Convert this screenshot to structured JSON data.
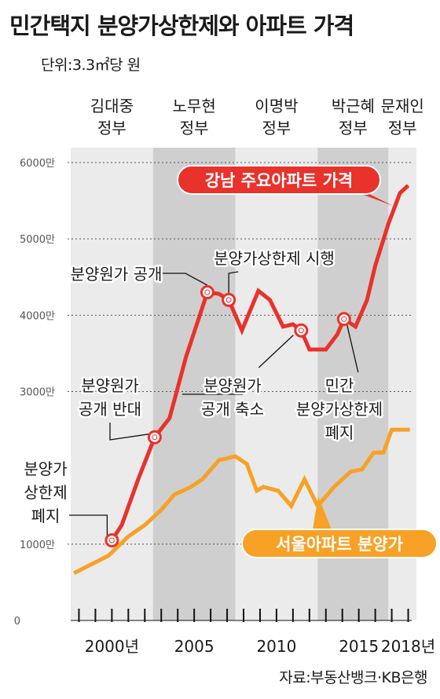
{
  "title": "민간택지 분양가상한제와 아파트 가격",
  "unit": "단위:3.3㎡당 원",
  "source": "자료:부동산뱅크·KB은행",
  "colors": {
    "red": "#e8322b",
    "orange": "#f7a127",
    "band_light": "#ebebeb",
    "band_dark": "#cfcfcf"
  },
  "chart_data": {
    "type": "line",
    "x_range": [
      1998,
      2019
    ],
    "ylim": [
      0,
      6300
    ],
    "grid": "dotted horizontal",
    "y_ticks": [
      {
        "value": 0,
        "label": "0"
      },
      {
        "value": 1000,
        "label": "1000만"
      },
      {
        "value": 3000,
        "label": "3000만"
      },
      {
        "value": 4000,
        "label": "4000만"
      },
      {
        "value": 5000,
        "label": "5000만"
      },
      {
        "value": 6000,
        "label": "6000만"
      }
    ],
    "x_tick_labels": [
      {
        "x": 2000,
        "label": "2000년"
      },
      {
        "x": 2005,
        "label": "2005"
      },
      {
        "x": 2010,
        "label": "2010"
      },
      {
        "x": 2015,
        "label": "2015"
      },
      {
        "x": 2018,
        "label": "2018년"
      }
    ],
    "governments": [
      {
        "line1": "김대중",
        "line2": "정부",
        "start": 1998,
        "end": 2003,
        "shade": "light"
      },
      {
        "line1": "노무현",
        "line2": "정부",
        "start": 2003,
        "end": 2008,
        "shade": "dark"
      },
      {
        "line1": "이명박",
        "line2": "정부",
        "start": 2008,
        "end": 2013,
        "shade": "light"
      },
      {
        "line1": "박근혜",
        "line2": "정부",
        "start": 2013,
        "end": 2017.3,
        "shade": "dark"
      },
      {
        "line1": "문재인",
        "line2": "정부",
        "start": 2017.3,
        "end": 2019,
        "shade": "light"
      }
    ],
    "series": [
      {
        "name": "강남 주요아파트 가격",
        "color": "#e8322b",
        "points": [
          [
            2000.5,
            1050
          ],
          [
            2001.1,
            1250
          ],
          [
            2002.1,
            1850
          ],
          [
            2003.1,
            2400
          ],
          [
            2004.0,
            2650
          ],
          [
            2005.0,
            3450
          ],
          [
            2006.3,
            4300
          ],
          [
            2007.0,
            4280
          ],
          [
            2007.6,
            4200
          ],
          [
            2008.4,
            3800
          ],
          [
            2009.4,
            4320
          ],
          [
            2010.1,
            4200
          ],
          [
            2010.9,
            3850
          ],
          [
            2011.5,
            3880
          ],
          [
            2012.0,
            3800
          ],
          [
            2012.5,
            3550
          ],
          [
            2013.5,
            3550
          ],
          [
            2014.2,
            3750
          ],
          [
            2014.6,
            3950
          ],
          [
            2015.3,
            3850
          ],
          [
            2016.0,
            4200
          ],
          [
            2016.5,
            4650
          ],
          [
            2017.3,
            5200
          ],
          [
            2018.0,
            5600
          ],
          [
            2018.5,
            5700
          ]
        ]
      },
      {
        "name": "서울아파트 분양가",
        "color": "#f7a127",
        "points": [
          [
            1998.2,
            620
          ],
          [
            2000.3,
            850
          ],
          [
            2001.5,
            1100
          ],
          [
            2002.5,
            1250
          ],
          [
            2003.5,
            1450
          ],
          [
            2004.3,
            1650
          ],
          [
            2005.3,
            1750
          ],
          [
            2006.0,
            1850
          ],
          [
            2007.0,
            2100
          ],
          [
            2008.0,
            2150
          ],
          [
            2008.7,
            2050
          ],
          [
            2009.3,
            1700
          ],
          [
            2009.7,
            1750
          ],
          [
            2010.6,
            1700
          ],
          [
            2011.4,
            1500
          ],
          [
            2012.2,
            1850
          ],
          [
            2013.0,
            1500
          ],
          [
            2014.0,
            1750
          ],
          [
            2015.0,
            1950
          ],
          [
            2015.7,
            1980
          ],
          [
            2016.4,
            2200
          ],
          [
            2017.0,
            2200
          ],
          [
            2017.5,
            2500
          ],
          [
            2018.0,
            2500
          ],
          [
            2018.6,
            2500
          ]
        ]
      }
    ],
    "markers": [
      [
        2000.5,
        1050
      ],
      [
        2003.1,
        2400
      ],
      [
        2006.3,
        4300
      ],
      [
        2007.6,
        4200
      ],
      [
        2012.0,
        3800
      ],
      [
        2014.6,
        3950
      ]
    ],
    "annotations": [
      {
        "lines": [
          "분양가",
          "상한제",
          "폐지"
        ],
        "x": 2000.5,
        "y": 1050,
        "callout": "upper-left"
      },
      {
        "lines": [
          "분양원가",
          "공개 반대"
        ],
        "x": 2003.1,
        "y": 2400,
        "callout": "lower-left"
      },
      {
        "lines": [
          "분양원가 공개"
        ],
        "x": 2006.3,
        "y": 4300,
        "callout": "upper-right"
      },
      {
        "lines": [
          "분양가상한제 시행"
        ],
        "x": 2007.6,
        "y": 4200,
        "callout": "upper"
      },
      {
        "lines": [
          "분양원가",
          "공개 축소"
        ],
        "x": 2012.0,
        "y": 3800,
        "callout": "lower-left"
      },
      {
        "lines": [
          "민간",
          "분양가상한제",
          "폐지"
        ],
        "x": 2014.6,
        "y": 3950,
        "callout": "lower"
      }
    ]
  }
}
